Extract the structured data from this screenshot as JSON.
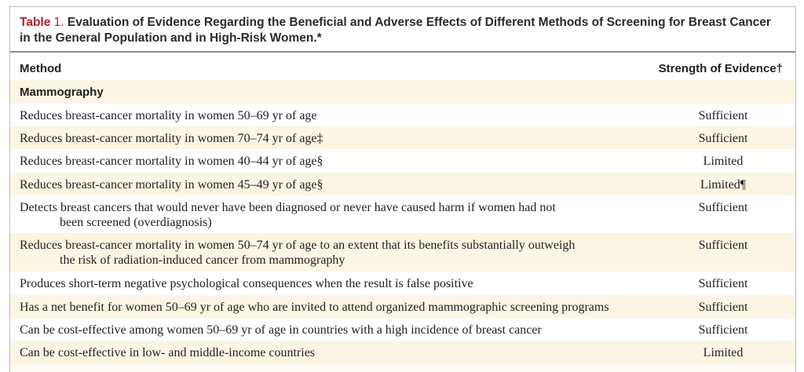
{
  "table": {
    "label": "Table",
    "number": "1.",
    "title_line1": "Evaluation of Evidence Regarding the Beneficial and Adverse Effects of Different Methods of Screening for Breast Cancer",
    "title_line2": "in the General Population and in High-Risk Women.*",
    "columns": {
      "method": "Method",
      "strength": "Strength of Evidence†"
    },
    "section": "Mammography",
    "rows": [
      {
        "method": "Reduces breast-cancer mortality in women 50–69 yr of age",
        "cont": "",
        "strength": "Sufficient"
      },
      {
        "method": "Reduces breast-cancer mortality in women 70–74 yr of age‡",
        "cont": "",
        "strength": "Sufficient"
      },
      {
        "method": "Reduces breast-cancer mortality in women 40–44 yr of age§",
        "cont": "",
        "strength": "Limited"
      },
      {
        "method": "Reduces breast-cancer mortality in women 45–49 yr of age§",
        "cont": "",
        "strength": "Limited¶"
      },
      {
        "method": "Detects breast cancers that would never have been diagnosed or never have caused harm if women had not",
        "cont": "been screened (overdiagnosis)",
        "strength": "Sufficient"
      },
      {
        "method": "Reduces breast-cancer mortality in women 50–74 yr of age to an extent that its benefits substantially outweigh",
        "cont": "the risk of radiation-induced cancer from mammography",
        "strength": "Sufficient"
      },
      {
        "method": "Produces short-term negative psychological consequences when the result is false positive",
        "cont": "",
        "strength": "Sufficient"
      },
      {
        "method": "Has a net benefit for women 50–69 yr of age who are invited to attend organized mammographic screening  programs",
        "cont": "",
        "strength": "Sufficient"
      },
      {
        "method": "Can be cost-effective among women 50–69 yr of age in countries with a high incidence of breast cancer",
        "cont": "",
        "strength": "Sufficient"
      },
      {
        "method": "Can be cost-effective in low- and middle-income countries",
        "cont": "",
        "strength": "Limited"
      }
    ]
  }
}
